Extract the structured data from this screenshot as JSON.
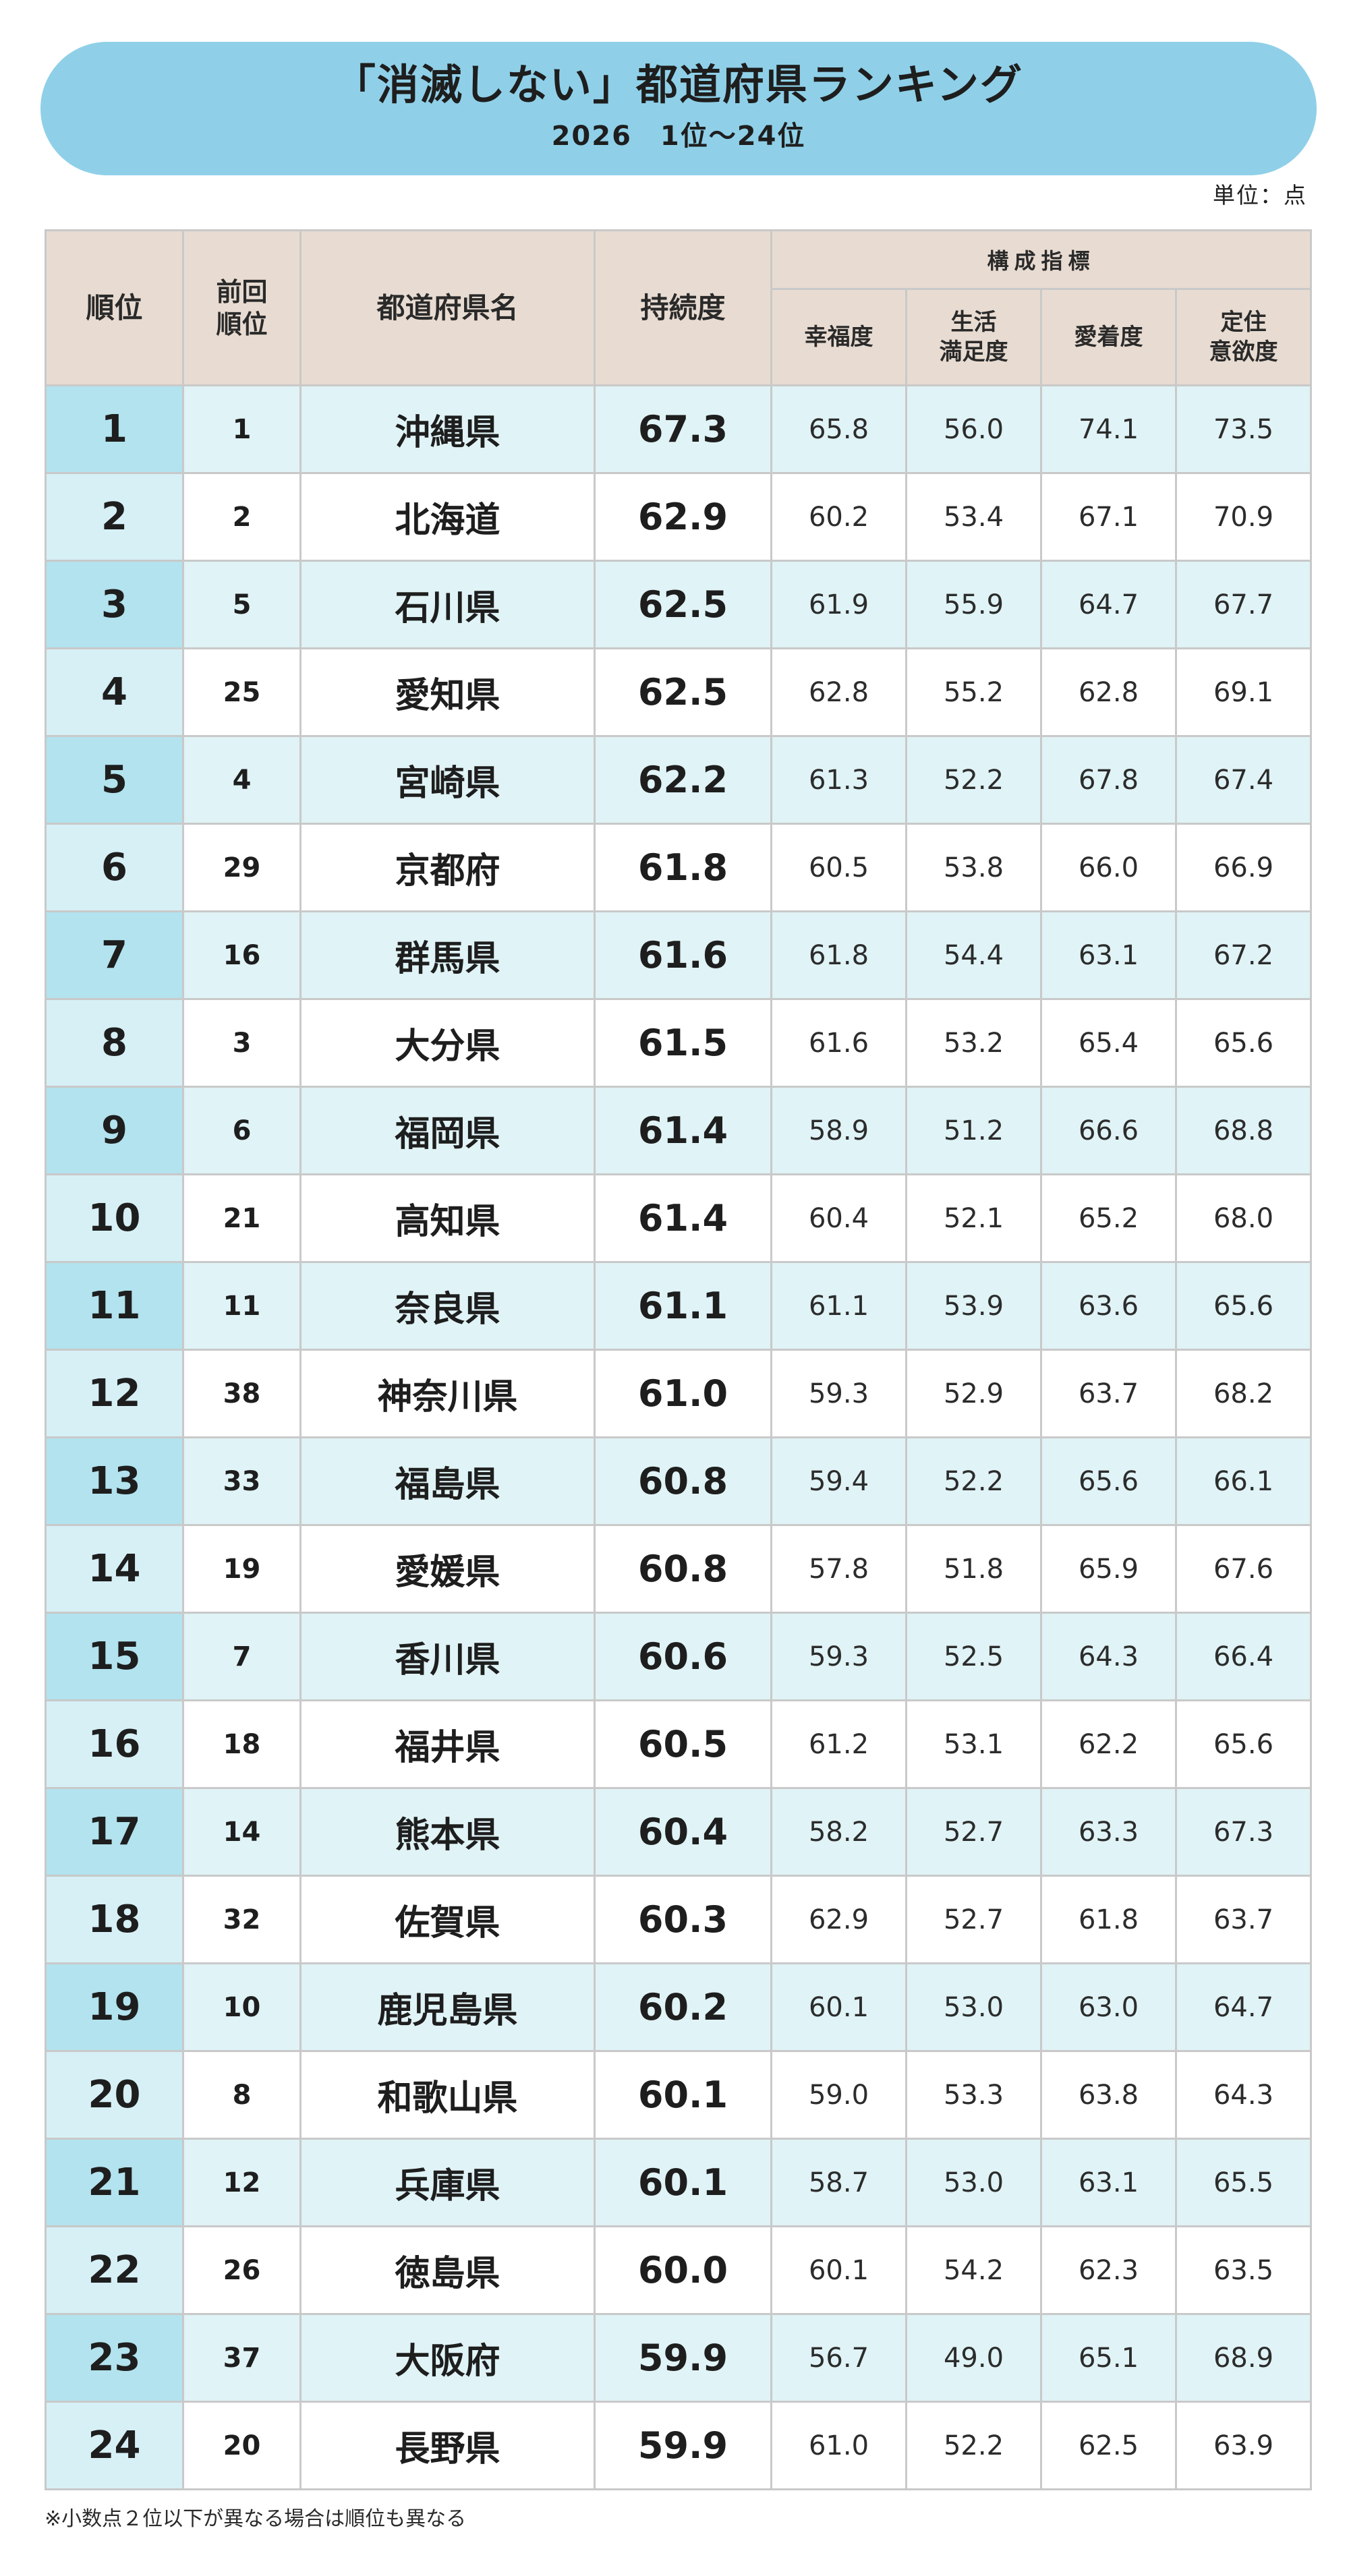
{
  "header": {
    "title": "「消滅しない」都道府県ランキング",
    "subtitle": "2026　1位～24位"
  },
  "unit_label": "単位：点",
  "table": {
    "columns": {
      "rank": "順位",
      "prev_rank": "前回\n順位",
      "name": "都道府県名",
      "score": "持続度",
      "group": "構成指標",
      "happiness": "幸福度",
      "satisfaction": "生活\n満足度",
      "attachment": "愛着度",
      "settle": "定住\n意欲度"
    },
    "rows": [
      {
        "rank": "1",
        "prev": "1",
        "name": "沖縄県",
        "score": "67.3",
        "happiness": "65.8",
        "satisfaction": "56.0",
        "attachment": "74.1",
        "settle": "73.5"
      },
      {
        "rank": "2",
        "prev": "2",
        "name": "北海道",
        "score": "62.9",
        "happiness": "60.2",
        "satisfaction": "53.4",
        "attachment": "67.1",
        "settle": "70.9"
      },
      {
        "rank": "3",
        "prev": "5",
        "name": "石川県",
        "score": "62.5",
        "happiness": "61.9",
        "satisfaction": "55.9",
        "attachment": "64.7",
        "settle": "67.7"
      },
      {
        "rank": "4",
        "prev": "25",
        "name": "愛知県",
        "score": "62.5",
        "happiness": "62.8",
        "satisfaction": "55.2",
        "attachment": "62.8",
        "settle": "69.1"
      },
      {
        "rank": "5",
        "prev": "4",
        "name": "宮崎県",
        "score": "62.2",
        "happiness": "61.3",
        "satisfaction": "52.2",
        "attachment": "67.8",
        "settle": "67.4"
      },
      {
        "rank": "6",
        "prev": "29",
        "name": "京都府",
        "score": "61.8",
        "happiness": "60.5",
        "satisfaction": "53.8",
        "attachment": "66.0",
        "settle": "66.9"
      },
      {
        "rank": "7",
        "prev": "16",
        "name": "群馬県",
        "score": "61.6",
        "happiness": "61.8",
        "satisfaction": "54.4",
        "attachment": "63.1",
        "settle": "67.2"
      },
      {
        "rank": "8",
        "prev": "3",
        "name": "大分県",
        "score": "61.5",
        "happiness": "61.6",
        "satisfaction": "53.2",
        "attachment": "65.4",
        "settle": "65.6"
      },
      {
        "rank": "9",
        "prev": "6",
        "name": "福岡県",
        "score": "61.4",
        "happiness": "58.9",
        "satisfaction": "51.2",
        "attachment": "66.6",
        "settle": "68.8"
      },
      {
        "rank": "10",
        "prev": "21",
        "name": "高知県",
        "score": "61.4",
        "happiness": "60.4",
        "satisfaction": "52.1",
        "attachment": "65.2",
        "settle": "68.0"
      },
      {
        "rank": "11",
        "prev": "11",
        "name": "奈良県",
        "score": "61.1",
        "happiness": "61.1",
        "satisfaction": "53.9",
        "attachment": "63.6",
        "settle": "65.6"
      },
      {
        "rank": "12",
        "prev": "38",
        "name": "神奈川県",
        "score": "61.0",
        "happiness": "59.3",
        "satisfaction": "52.9",
        "attachment": "63.7",
        "settle": "68.2"
      },
      {
        "rank": "13",
        "prev": "33",
        "name": "福島県",
        "score": "60.8",
        "happiness": "59.4",
        "satisfaction": "52.2",
        "attachment": "65.6",
        "settle": "66.1"
      },
      {
        "rank": "14",
        "prev": "19",
        "name": "愛媛県",
        "score": "60.8",
        "happiness": "57.8",
        "satisfaction": "51.8",
        "attachment": "65.9",
        "settle": "67.6"
      },
      {
        "rank": "15",
        "prev": "7",
        "name": "香川県",
        "score": "60.6",
        "happiness": "59.3",
        "satisfaction": "52.5",
        "attachment": "64.3",
        "settle": "66.4"
      },
      {
        "rank": "16",
        "prev": "18",
        "name": "福井県",
        "score": "60.5",
        "happiness": "61.2",
        "satisfaction": "53.1",
        "attachment": "62.2",
        "settle": "65.6"
      },
      {
        "rank": "17",
        "prev": "14",
        "name": "熊本県",
        "score": "60.4",
        "happiness": "58.2",
        "satisfaction": "52.7",
        "attachment": "63.3",
        "settle": "67.3"
      },
      {
        "rank": "18",
        "prev": "32",
        "name": "佐賀県",
        "score": "60.3",
        "happiness": "62.9",
        "satisfaction": "52.7",
        "attachment": "61.8",
        "settle": "63.7"
      },
      {
        "rank": "19",
        "prev": "10",
        "name": "鹿児島県",
        "score": "60.2",
        "happiness": "60.1",
        "satisfaction": "53.0",
        "attachment": "63.0",
        "settle": "64.7"
      },
      {
        "rank": "20",
        "prev": "8",
        "name": "和歌山県",
        "score": "60.1",
        "happiness": "59.0",
        "satisfaction": "53.3",
        "attachment": "63.8",
        "settle": "64.3"
      },
      {
        "rank": "21",
        "prev": "12",
        "name": "兵庫県",
        "score": "60.1",
        "happiness": "58.7",
        "satisfaction": "53.0",
        "attachment": "63.1",
        "settle": "65.5"
      },
      {
        "rank": "22",
        "prev": "26",
        "name": "徳島県",
        "score": "60.0",
        "happiness": "60.1",
        "satisfaction": "54.2",
        "attachment": "62.3",
        "settle": "63.5"
      },
      {
        "rank": "23",
        "prev": "37",
        "name": "大阪府",
        "score": "59.9",
        "happiness": "56.7",
        "satisfaction": "49.0",
        "attachment": "65.1",
        "settle": "68.9"
      },
      {
        "rank": "24",
        "prev": "20",
        "name": "長野県",
        "score": "59.9",
        "happiness": "61.0",
        "satisfaction": "52.2",
        "attachment": "62.5",
        "settle": "63.9"
      }
    ]
  },
  "footnote": "※小数点２位以下が異なる場合は順位も異なる"
}
